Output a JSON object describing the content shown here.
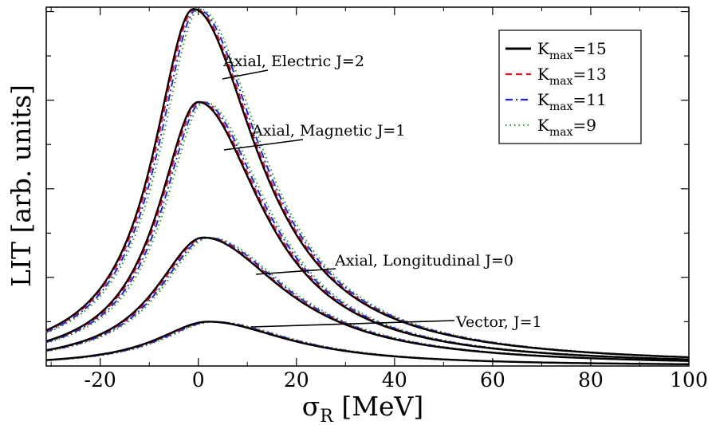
{
  "chart_data": {
    "type": "line",
    "xlabel": "σ",
    "xlabel_sub": "R",
    "xlabel_unit": " [MeV]",
    "ylabel": "LIT [arb. units]",
    "xlim": [
      -31,
      100
    ],
    "ylim": [
      0,
      4.05
    ],
    "xticks": [
      "-20",
      "0",
      "20",
      "40",
      "60",
      "80",
      "100"
    ],
    "xtick_values": [
      -20,
      0,
      20,
      40,
      60,
      80,
      100
    ],
    "yticks": [
      0.5,
      1,
      1.5,
      2,
      2.5,
      3,
      3.5,
      4
    ],
    "grid": false,
    "legend_position": "top-right",
    "legend": [
      {
        "prefix": "K",
        "sub": "max",
        "suffix": "=15",
        "color": "#000000",
        "dash": "solid"
      },
      {
        "prefix": "K",
        "sub": "max",
        "suffix": "=13",
        "color": "#e8141b",
        "dash": "dashed"
      },
      {
        "prefix": "K",
        "sub": "max",
        "suffix": "=11",
        "color": "#1f25d8",
        "dash": "dash-dot"
      },
      {
        "prefix": "K",
        "sub": "max",
        "suffix": "=9",
        "color": "#2a9d2a",
        "dash": "dotted"
      }
    ],
    "curves": [
      {
        "label": "Axial, Electric J=2",
        "peak_x": -1,
        "peak_y": 4.03,
        "width_left": 10,
        "width_right": 16,
        "tail": 0.12
      },
      {
        "label": "Axial, Magnetic J=1",
        "peak_x": 0,
        "peak_y": 2.98,
        "width_left": 10,
        "width_right": 16,
        "tail": 0.12
      },
      {
        "label": "Axial, Longitudinal J=0",
        "peak_x": 1,
        "peak_y": 1.45,
        "width_left": 12,
        "width_right": 20,
        "tail": 0.1
      },
      {
        "label": "Vector, J=1",
        "peak_x": 2,
        "peak_y": 0.5,
        "width_left": 13,
        "width_right": 20,
        "tail": 0.06
      }
    ],
    "annotations": [
      {
        "text": "Axial, Electric J=2"
      },
      {
        "text": "Axial, Magnetic J=1"
      },
      {
        "text": "Axial, Longitudinal J=0"
      },
      {
        "text": "Vector, J=1"
      }
    ]
  }
}
